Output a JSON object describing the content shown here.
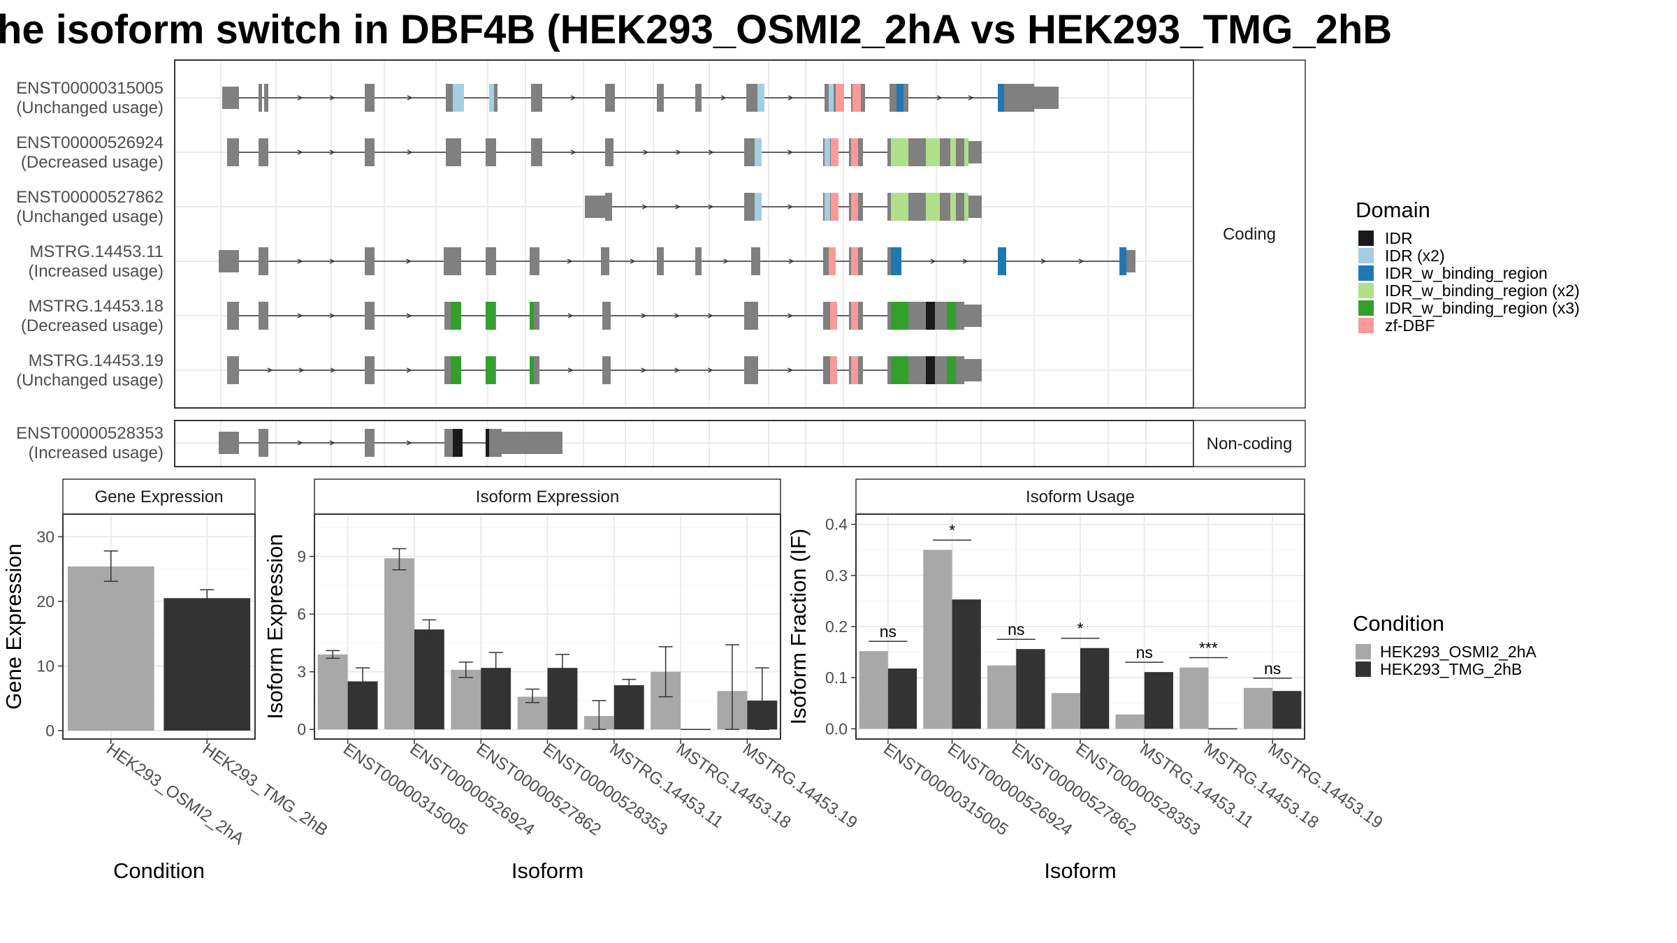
{
  "title": "he isoform switch in DBF4B (HEK293_OSMI2_2hA vs HEK293_TMG_2hB",
  "colors": {
    "IDR": "#1a1a1a",
    "IDR (x2)": "#a6cee3",
    "IDR_w_binding_region": "#1f78b4",
    "IDR_w_binding_region (x2)": "#b2df8a",
    "IDR_w_binding_region (x3)": "#33a02c",
    "zf-DBF": "#fb9a99",
    "exon": "#808080",
    "cond1": "#a8a8a8",
    "cond2": "#333333"
  },
  "structure": {
    "coding_strip": "Coding",
    "noncoding_strip": "Non-coding",
    "coding_isoforms": [
      {
        "id": "ENST00000315005",
        "usage": "(Unchanged usage)"
      },
      {
        "id": "ENST00000526924",
        "usage": "(Decreased usage)"
      },
      {
        "id": "ENST00000527862",
        "usage": "(Unchanged usage)"
      },
      {
        "id": "MSTRG.14453.11",
        "usage": "(Increased usage)"
      },
      {
        "id": "MSTRG.14453.18",
        "usage": "(Decreased usage)"
      },
      {
        "id": "MSTRG.14453.19",
        "usage": "(Unchanged usage)"
      }
    ],
    "noncoding_isoforms": [
      {
        "id": "ENST00000528353",
        "usage": "(Increased usage)"
      }
    ]
  },
  "legend_domain": {
    "title": "Domain",
    "items": [
      "IDR",
      "IDR (x2)",
      "IDR_w_binding_region",
      "IDR_w_binding_region (x2)",
      "IDR_w_binding_region (x3)",
      "zf-DBF"
    ]
  },
  "legend_condition": {
    "title": "Condition",
    "items": [
      "HEK293_OSMI2_2hA",
      "HEK293_TMG_2hB"
    ]
  },
  "chart_data": [
    {
      "type": "bar",
      "title": "Gene Expression",
      "xlabel": "Condition",
      "ylabel": "Gene Expression",
      "categories": [
        "HEK293_OSMI2_2hA",
        "HEK293_TMG_2hB"
      ],
      "values": [
        25.4,
        20.5
      ],
      "errors": [
        [
          23.1,
          27.8
        ],
        [
          19.3,
          21.8
        ]
      ],
      "ylim": [
        -1.3,
        33.5
      ],
      "yticks": [
        0,
        10,
        20,
        30
      ],
      "grid": true
    },
    {
      "type": "bar",
      "title": "Isoform Expression",
      "xlabel": "Isoform",
      "ylabel": "Isoform Expression",
      "categories": [
        "ENST00000315005",
        "ENST00000526924",
        "ENST00000527862",
        "ENST00000528353",
        "MSTRG.14453.11",
        "MSTRG.14453.18",
        "MSTRG.14453.19"
      ],
      "series": [
        {
          "name": "HEK293_OSMI2_2hA",
          "values": [
            3.9,
            8.9,
            3.1,
            1.7,
            0.7,
            3.0,
            2.0
          ],
          "errors": [
            [
              3.7,
              4.1
            ],
            [
              8.3,
              9.4
            ],
            [
              2.7,
              3.5
            ],
            [
              1.4,
              2.1
            ],
            [
              0.0,
              1.5
            ],
            [
              1.7,
              4.3
            ],
            [
              0.0,
              4.4
            ]
          ]
        },
        {
          "name": "HEK293_TMG_2hB",
          "values": [
            2.5,
            5.2,
            3.2,
            3.2,
            2.3,
            0.0,
            1.5
          ],
          "errors": [
            [
              1.6,
              3.2
            ],
            [
              4.7,
              5.7
            ],
            [
              2.3,
              4.0
            ],
            [
              2.5,
              3.9
            ],
            [
              2.0,
              2.6
            ],
            [
              0.0,
              0.0
            ],
            [
              0.0,
              3.2
            ]
          ]
        }
      ],
      "ylim": [
        -0.5,
        11.2
      ],
      "yticks": [
        0,
        3,
        6,
        9
      ],
      "grid": true
    },
    {
      "type": "bar",
      "title": "Isoform Usage",
      "xlabel": "Isoform",
      "ylabel": "Isoform Fraction (IF)",
      "categories": [
        "ENST00000315005",
        "ENST00000526924",
        "ENST00000527862",
        "ENST00000528353",
        "MSTRG.14453.11",
        "MSTRG.14453.18",
        "MSTRG.14453.19"
      ],
      "series": [
        {
          "name": "HEK293_OSMI2_2hA",
          "values": [
            0.152,
            0.35,
            0.124,
            0.07,
            0.028,
            0.12,
            0.08
          ]
        },
        {
          "name": "HEK293_TMG_2hB",
          "values": [
            0.118,
            0.253,
            0.156,
            0.158,
            0.111,
            0.0,
            0.074
          ]
        }
      ],
      "significance": [
        "ns",
        "*",
        "ns",
        "*",
        "ns",
        "***",
        "ns"
      ],
      "ylim": [
        -0.02,
        0.42
      ],
      "yticks": [
        0.0,
        0.1,
        0.2,
        0.3,
        0.4
      ],
      "ytick_labels": [
        "0.0",
        "0.1",
        "0.2",
        "0.3",
        "0.4"
      ],
      "grid": true
    }
  ]
}
